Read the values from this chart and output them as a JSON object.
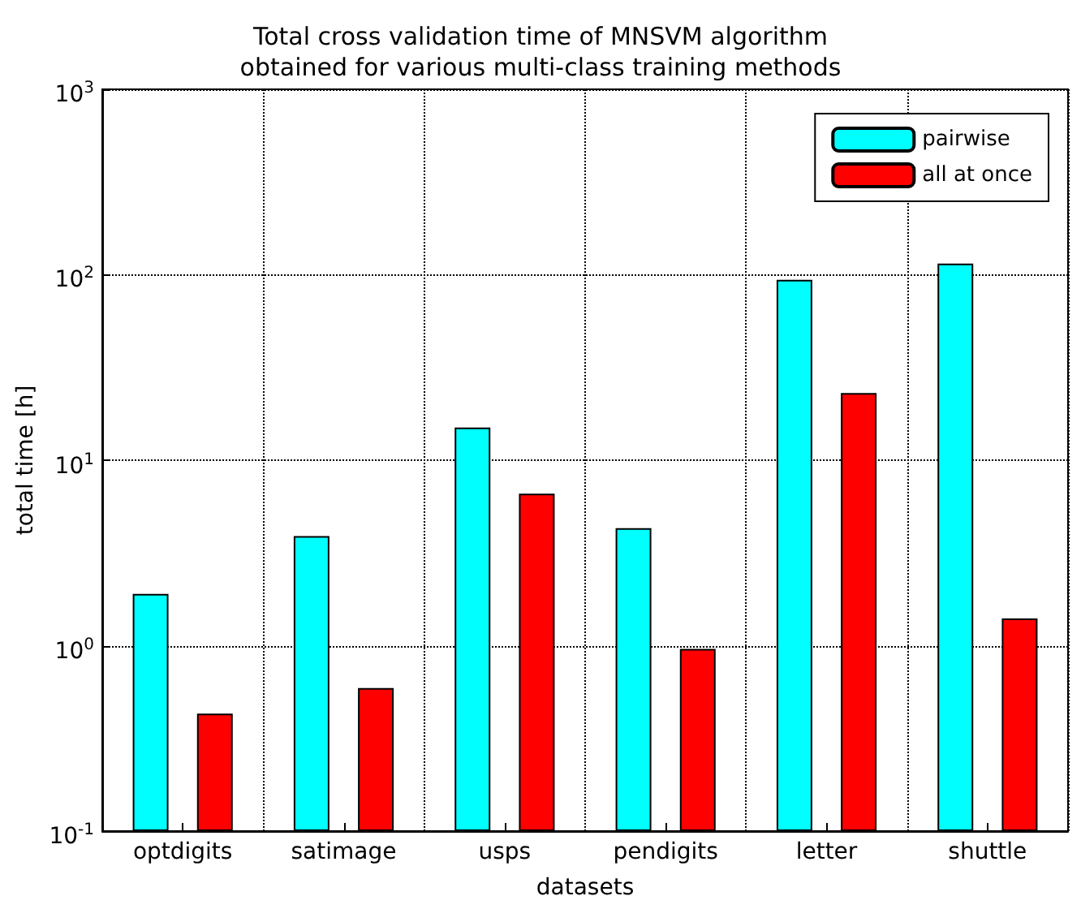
{
  "chart_data": {
    "type": "bar",
    "title": "Total cross validation time of MNSVM algorithm\nobtained for various multi-class training methods",
    "xlabel": "datasets",
    "ylabel": "total time [h]",
    "categories": [
      "optdigits",
      "satimage",
      "usps",
      "pendigits",
      "letter",
      "shuttle"
    ],
    "series": [
      {
        "name": "pairwise",
        "color": "#00ffff",
        "values": [
          1.9,
          3.9,
          15,
          4.3,
          94,
          115
        ]
      },
      {
        "name": "all at once",
        "color": "#ff0000",
        "values": [
          0.43,
          0.59,
          6.6,
          0.96,
          23,
          1.4
        ]
      }
    ],
    "log": "y",
    "ylim": [
      0.1,
      1000
    ],
    "yticks": [
      {
        "value": 0.1,
        "label": "10$^{-1}$"
      },
      {
        "value": 1,
        "label": "10$^{0}$"
      },
      {
        "value": 10,
        "label": "10$^{1}$"
      },
      {
        "value": 100,
        "label": "10$^{2}$"
      },
      {
        "value": 1000,
        "label": "10$^{3}$"
      }
    ],
    "grid": true,
    "legend": "top right"
  }
}
